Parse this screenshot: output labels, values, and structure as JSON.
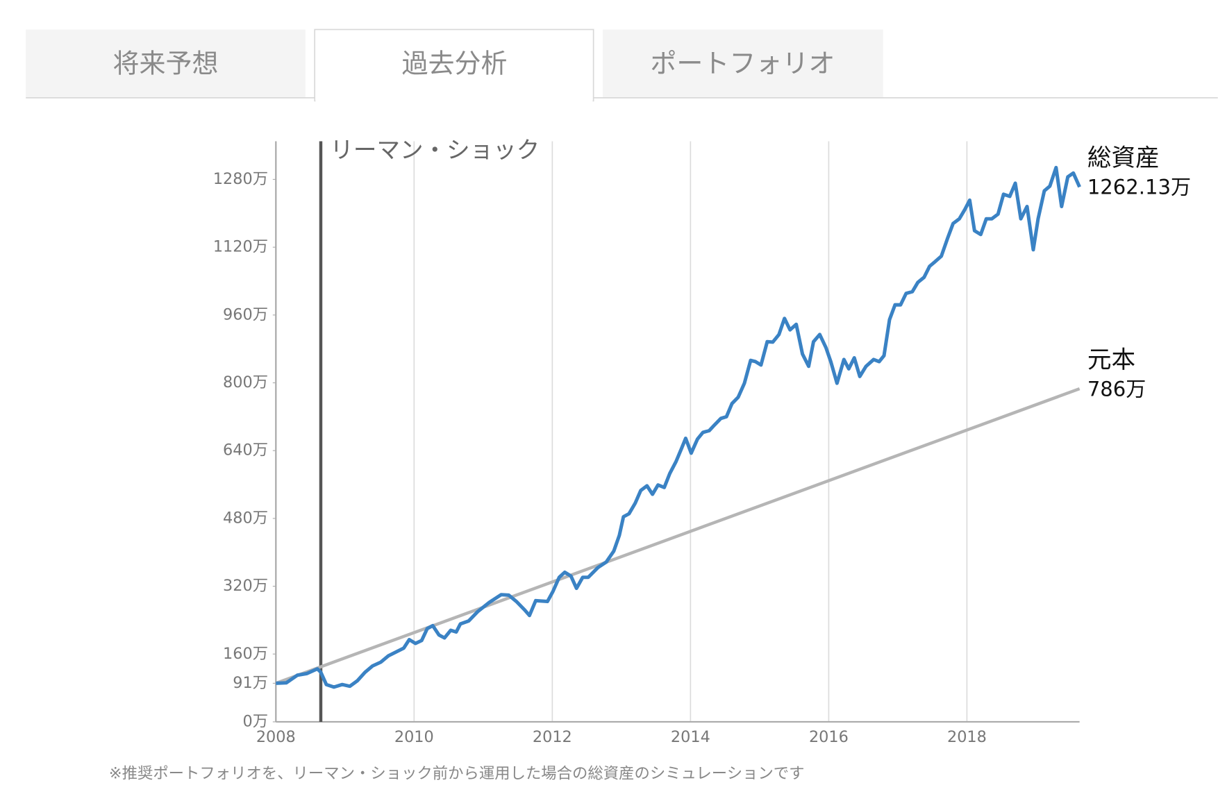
{
  "tabs": [
    "将来予想",
    "過去分析",
    "ポートフォリオ"
  ],
  "active_tab": 1,
  "chart_data": {
    "type": "line",
    "xlim": [
      2008,
      2019.63
    ],
    "xticks": [
      2008,
      2010,
      2012,
      2014,
      2016,
      2018
    ],
    "ylim": [
      0,
      1370
    ],
    "yticks": [
      {
        "value": 0,
        "label": "0万"
      },
      {
        "value": 91,
        "label": "91万"
      },
      {
        "value": 160,
        "label": "160万"
      },
      {
        "value": 320,
        "label": "320万"
      },
      {
        "value": 480,
        "label": "480万"
      },
      {
        "value": 640,
        "label": "640万"
      },
      {
        "value": 800,
        "label": "800万"
      },
      {
        "value": 960,
        "label": "960万"
      },
      {
        "value": 1120,
        "label": "1120万"
      },
      {
        "value": 1280,
        "label": "1280万"
      }
    ],
    "grid": true,
    "events": [
      {
        "x": 2008.65,
        "label": "リーマン・ショック"
      }
    ],
    "series": [
      {
        "name": "総資産",
        "color": "#3a82c4",
        "last_label": "1262.13万",
        "x": [
          2008,
          2008.15,
          2008.31,
          2008.45,
          2008.6,
          2008.65,
          2008.73,
          2008.84,
          2008.96,
          2009.07,
          2009.18,
          2009.29,
          2009.4,
          2009.52,
          2009.63,
          2009.74,
          2009.85,
          2009.93,
          2010.02,
          2010.11,
          2010.19,
          2010.27,
          2010.36,
          2010.44,
          2010.53,
          2010.61,
          2010.67,
          2010.79,
          2010.92,
          2011.09,
          2011.26,
          2011.37,
          2011.48,
          2011.6,
          2011.67,
          2011.76,
          2011.93,
          2012.01,
          2012.1,
          2012.18,
          2012.27,
          2012.35,
          2012.44,
          2012.52,
          2012.66,
          2012.78,
          2012.89,
          2012.97,
          2013.03,
          2013.11,
          2013.2,
          2013.28,
          2013.37,
          2013.45,
          2013.53,
          2013.62,
          2013.7,
          2013.79,
          2013.87,
          2013.93,
          2014.01,
          2014.1,
          2014.18,
          2014.27,
          2014.35,
          2014.44,
          2014.52,
          2014.6,
          2014.69,
          2014.78,
          2014.87,
          2014.94,
          2015.02,
          2015.11,
          2015.19,
          2015.28,
          2015.36,
          2015.44,
          2015.53,
          2015.62,
          2015.71,
          2015.78,
          2015.87,
          2015.96,
          2016.03,
          2016.12,
          2016.22,
          2016.29,
          2016.37,
          2016.45,
          2016.54,
          2016.65,
          2016.73,
          2016.8,
          2016.88,
          2016.96,
          2017.04,
          2017.12,
          2017.21,
          2017.29,
          2017.38,
          2017.46,
          2017.54,
          2017.63,
          2017.72,
          2017.8,
          2017.89,
          2017.97,
          2018.04,
          2018.11,
          2018.2,
          2018.28,
          2018.36,
          2018.45,
          2018.53,
          2018.62,
          2018.7,
          2018.78,
          2018.87,
          2018.96,
          2019.03,
          2019.12,
          2019.2,
          2019.29,
          2019.37,
          2019.46,
          2019.54,
          2019.63
        ],
        "values": [
          91,
          92,
          110,
          114,
          125,
          117,
          88,
          82,
          88,
          84,
          97,
          117,
          132,
          141,
          156,
          165,
          174,
          194,
          185,
          192,
          220,
          227,
          205,
          198,
          216,
          212,
          231,
          238,
          260,
          282,
          300,
          299,
          284,
          264,
          251,
          286,
          284,
          308,
          341,
          353,
          344,
          315,
          341,
          341,
          364,
          377,
          403,
          440,
          484,
          491,
          516,
          546,
          557,
          537,
          559,
          553,
          586,
          614,
          645,
          669,
          634,
          667,
          683,
          687,
          701,
          716,
          720,
          751,
          766,
          799,
          853,
          850,
          842,
          897,
          896,
          914,
          952,
          925,
          938,
          868,
          839,
          897,
          914,
          883,
          850,
          799,
          855,
          833,
          859,
          815,
          839,
          855,
          850,
          864,
          949,
          984,
          984,
          1011,
          1015,
          1037,
          1049,
          1075,
          1086,
          1099,
          1141,
          1176,
          1187,
          1209,
          1231,
          1159,
          1150,
          1187,
          1187,
          1198,
          1245,
          1240,
          1271,
          1187,
          1216,
          1114,
          1187,
          1253,
          1264,
          1308,
          1216,
          1286,
          1295,
          1262.13
        ]
      },
      {
        "name": "元本",
        "color": "#b5b5b5",
        "last_label": "786万",
        "x": [
          2008,
          2019.63
        ],
        "values": [
          91,
          786
        ]
      }
    ]
  },
  "footnote": "※推奨ポートフォリオを、リーマン・ショック前から運用した場合の総資産のシミュレーションです"
}
